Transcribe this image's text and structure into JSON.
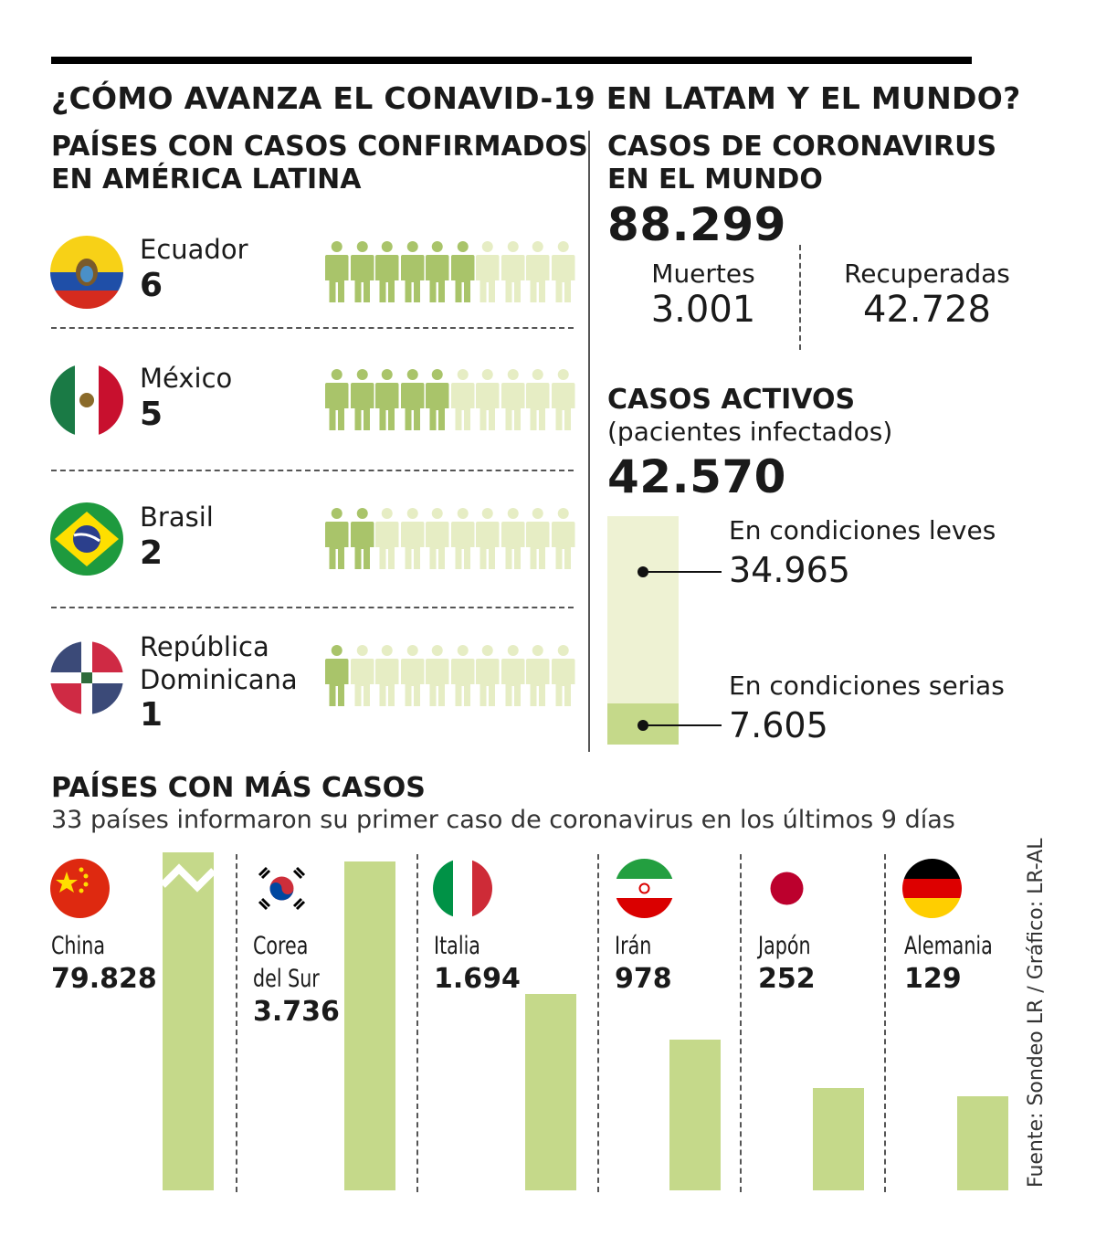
{
  "title": "¿CÓMO AVANZA EL CONAVID-19 EN LATAM Y EL MUNDO?",
  "latam": {
    "heading_line1": "PAÍSES CON CASOS CONFIRMADOS",
    "heading_line2": "EN AMÉRICA LATINA",
    "max_icons": 10,
    "countries": [
      {
        "name": "Ecuador",
        "count": "6",
        "value": 6,
        "flag": "ecuador-flag-icon"
      },
      {
        "name": "México",
        "count": "5",
        "value": 5,
        "flag": "mexico-flag-icon"
      },
      {
        "name": "Brasil",
        "count": "2",
        "value": 2,
        "flag": "brazil-flag-icon"
      },
      {
        "name_line1": "República",
        "name_line2": "Dominicana",
        "count": "1",
        "value": 1,
        "flag": "dominican-republic-flag-icon"
      }
    ]
  },
  "world": {
    "heading_line1": "CASOS DE CORONAVIRUS",
    "heading_line2": "EN EL MUNDO",
    "total": "88.299",
    "deaths_label": "Muertes",
    "deaths": "3.001",
    "recovered_label": "Recuperadas",
    "recovered": "42.728"
  },
  "active": {
    "heading": "CASOS ACTIVOS",
    "subheading": "(pacientes infectados)",
    "total": "42.570",
    "mild_label": "En condiciones leves",
    "mild": "34.965",
    "serious_label": "En condiciones serias",
    "serious": "7.605"
  },
  "top": {
    "heading": "PAÍSES CON MÁS CASOS",
    "subtitle": "33 países informaron su primer caso de coronavirus en los últimos 9 días"
  },
  "source": "Fuente: Sondeo LR / Gráfico: LR-AL",
  "colors": {
    "bar": "#c5d98a",
    "bar_light": "#eef2d3",
    "person_on": "#a9c46a",
    "person_off": "#e6edc4"
  },
  "chart_data": [
    {
      "type": "bar",
      "title": "PAÍSES CON MÁS CASOS",
      "categories": [
        "China",
        "Corea del Sur",
        "Italia",
        "Irán",
        "Japón",
        "Alemania"
      ],
      "values": [
        79828,
        3736,
        1694,
        978,
        252,
        129
      ],
      "labels": [
        "79.828",
        "3.736",
        "1.694",
        "978",
        "252",
        "129"
      ],
      "note": "China bar truncated (axis break)"
    },
    {
      "type": "bar",
      "title": "PAÍSES CON CASOS CONFIRMADOS EN AMÉRICA LATINA",
      "categories": [
        "Ecuador",
        "México",
        "Brasil",
        "República Dominicana"
      ],
      "values": [
        6,
        5,
        2,
        1
      ]
    },
    {
      "type": "bar",
      "title": "CASOS ACTIVOS",
      "categories": [
        "En condiciones leves",
        "En condiciones serias"
      ],
      "values": [
        34965,
        7605
      ],
      "total": 42570
    }
  ]
}
